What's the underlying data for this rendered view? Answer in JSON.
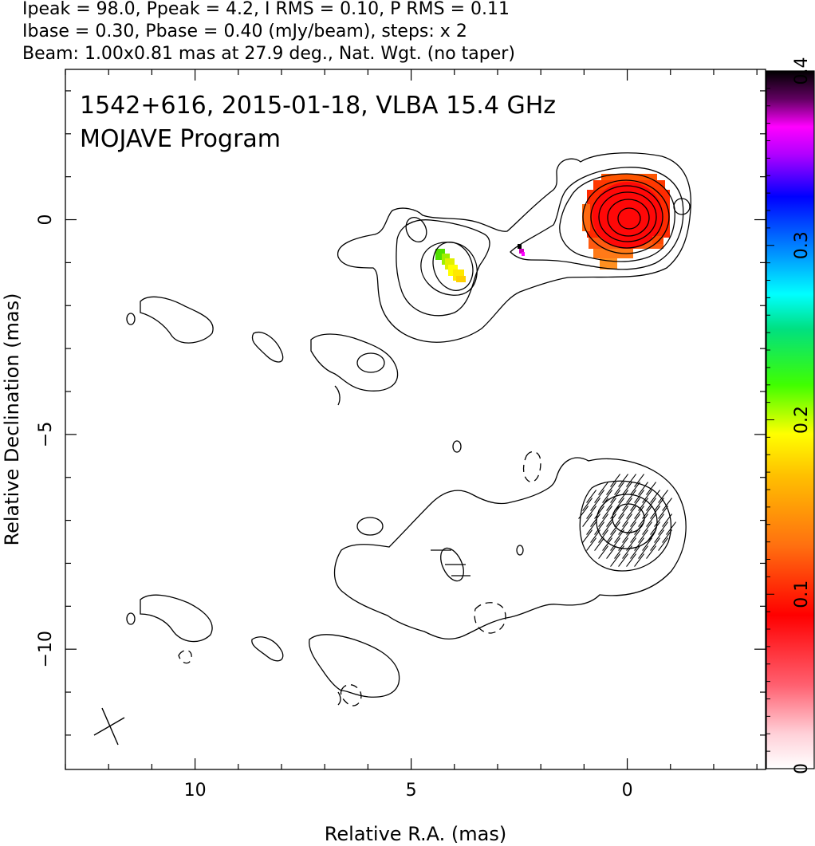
{
  "header": {
    "line1": "Ipeak = 98.0, Ppeak = 4.2, I RMS = 0.10, P RMS = 0.11",
    "line2": "Ibase = 0.30, Pbase = 0.40 (mJy/beam), steps: x 2",
    "line3": "Beam: 1.00x0.81 mas at 27.9 deg., Nat. Wgt. (no taper)"
  },
  "panel": {
    "title_line1": "1542+616, 2015-01-18, VLBA 15.4 GHz",
    "title_line2": "MOJAVE Program"
  },
  "chart_data": {
    "type": "contour",
    "xlabel": "Relative R.A. (mas)",
    "ylabel": "Relative Declination (mas)",
    "xlim": [
      13.0,
      -3.2
    ],
    "ylim": [
      -12.8,
      3.5
    ],
    "x_ticks": [
      10,
      5,
      0
    ],
    "y_ticks": [
      0,
      -5,
      -10
    ],
    "x_tick_labels": [
      "10",
      "5",
      "0"
    ],
    "y_tick_labels": [
      "0",
      "−5",
      "−10"
    ],
    "colorbar": {
      "min": 0,
      "max": 0.4,
      "ticks": [
        0,
        0.1,
        0.2,
        0.3,
        0.4
      ],
      "tick_labels": [
        "0",
        "0.1",
        "0.2",
        "0.3",
        "0.4"
      ],
      "orientation": "vertical",
      "position": "right"
    },
    "images": [
      {
        "name": "total-intensity-polarization",
        "peak": [
          0.0,
          0.0
        ],
        "contour_levels_mJy": [
          0.3,
          0.6,
          1.2,
          2.4,
          4.8,
          9.6,
          19.2,
          38.4,
          76.8
        ]
      },
      {
        "name": "polarized-intensity",
        "peak": [
          0.0,
          -7.0
        ],
        "offset_mas": -7.0
      }
    ],
    "beam": {
      "major_mas": 1.0,
      "minor_mas": 0.81,
      "pa_deg": 27.9,
      "center": [
        12.2,
        -11.7
      ]
    }
  }
}
